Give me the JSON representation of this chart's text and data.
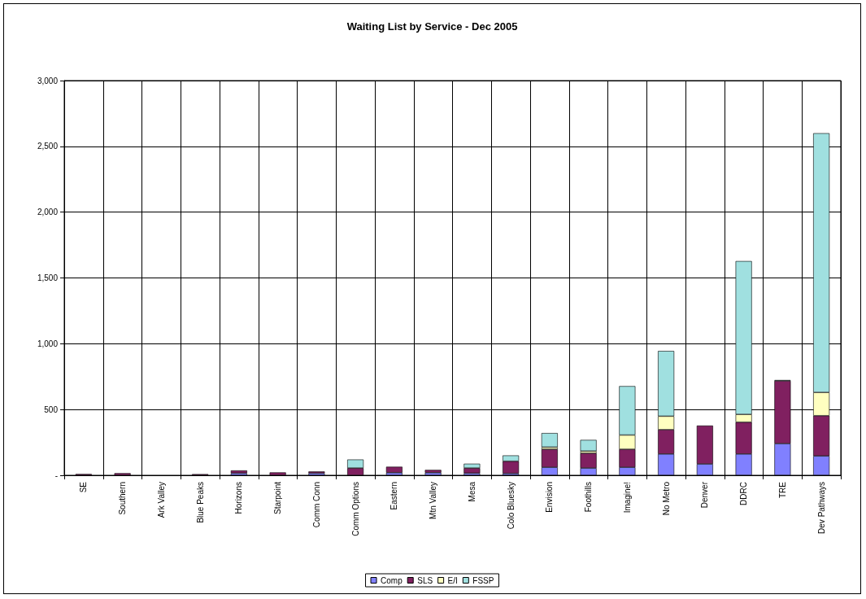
{
  "chart_data": {
    "type": "bar",
    "title": "Waiting List by Service - Dec 2005",
    "stacked": true,
    "categories": [
      "SE",
      "Southern",
      "Ark Valley",
      "Blue Peaks",
      "Horizons",
      "Starpoint",
      "Comm Conn",
      "Comm Options",
      "Eastern",
      "Mtn Valley",
      "Mesa",
      "Colo Bluesky",
      "Envision",
      "Foothills",
      "Imagine!",
      "No Metro",
      "Denver",
      "DDRC",
      "TRE",
      "Dev Pathways"
    ],
    "series": [
      {
        "name": "Comp",
        "color": "#8080ff",
        "values": [
          null,
          null,
          null,
          null,
          16,
          null,
          16,
          null,
          20,
          20,
          16,
          14,
          61,
          55,
          61,
          162,
          86,
          162,
          241,
          147
        ]
      },
      {
        "name": "SLS",
        "color": "#802060",
        "values": [
          10,
          16,
          null,
          9,
          21,
          22,
          13,
          55,
          45,
          21,
          39,
          93,
          137,
          113,
          137,
          185,
          292,
          242,
          477,
          306
        ]
      },
      {
        "name": "E/I",
        "color": "#ffffc0",
        "values": [
          null,
          null,
          null,
          null,
          null,
          null,
          null,
          null,
          null,
          null,
          null,
          null,
          16,
          16,
          108,
          102,
          null,
          59,
          null,
          177
        ]
      },
      {
        "name": "FSSP",
        "color": "#a0e0e0",
        "values": [
          null,
          null,
          null,
          null,
          null,
          null,
          null,
          65,
          null,
          null,
          33,
          44,
          107,
          85,
          372,
          496,
          null,
          1165,
          6,
          1970
        ]
      }
    ],
    "ylim": [
      0,
      3000
    ],
    "yticks": [
      {
        "value": 0,
        "label": "-"
      },
      500,
      {
        "value": 1000,
        "label": "1,000"
      },
      {
        "value": 1500,
        "label": "1,500"
      },
      {
        "value": 2000,
        "label": "2,000"
      },
      {
        "value": 2500,
        "label": "2,500"
      },
      {
        "value": 3000,
        "label": "3,000"
      }
    ],
    "grid": true,
    "legend": "bottom"
  }
}
